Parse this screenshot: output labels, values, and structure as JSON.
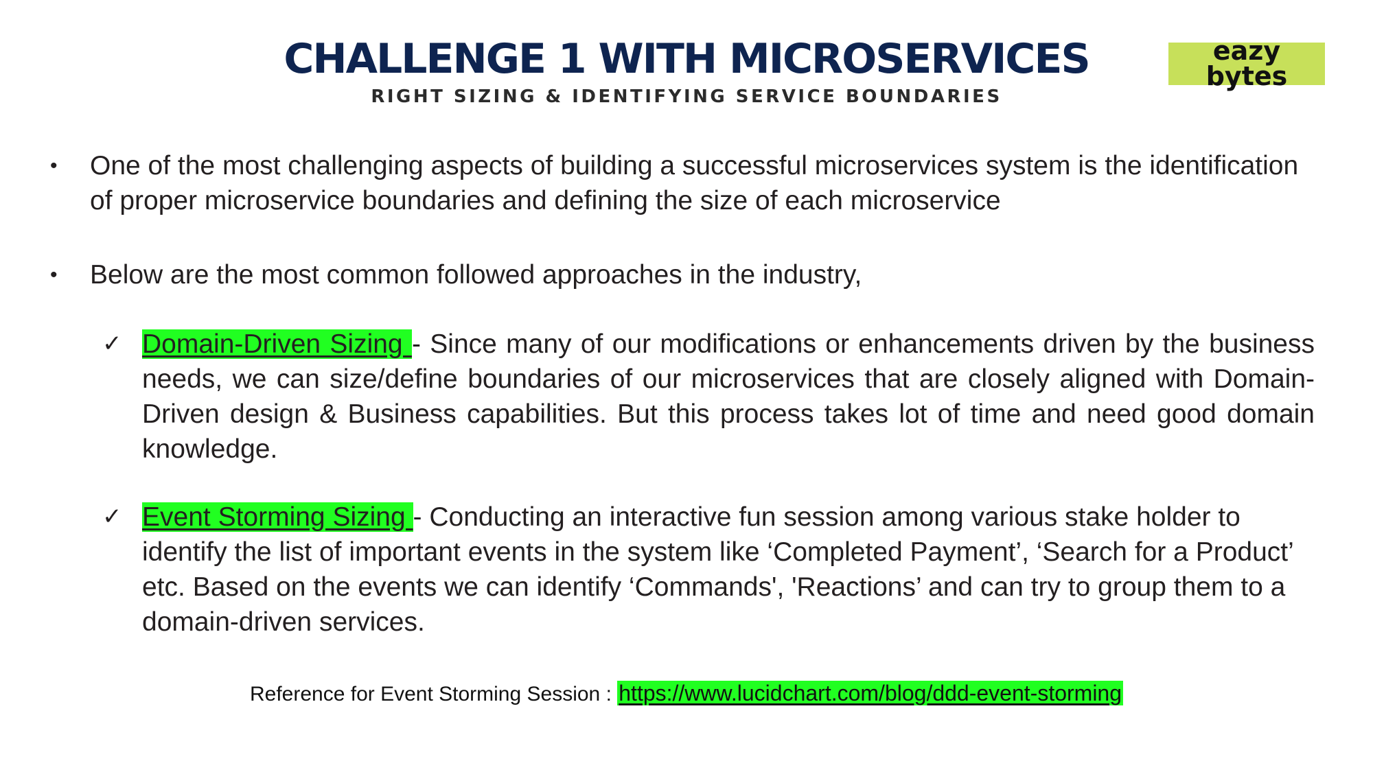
{
  "header": {
    "title": "CHALLENGE 1 WITH MICROSERVICES",
    "subtitle": "RIGHT SIZING & IDENTIFYING SERVICE BOUNDARIES"
  },
  "logo": {
    "line1": "eazy",
    "line2": "bytes",
    "color": "#c7e05a"
  },
  "bullets": [
    "One of the most challenging aspects of building a successful microservices system is the identification of proper microservice boundaries and defining the size of each microservice",
    "Below are the most common followed approaches in the industry,"
  ],
  "approaches": [
    {
      "name": "Domain-Driven Sizing ",
      "description": "- Since many of our modifications or enhancements driven by the business needs, we can size/define boundaries of our microservices that are closely aligned with Domain-Driven design & Business capabilities. But this process takes lot of time and need good domain knowledge."
    },
    {
      "name": "Event Storming Sizing ",
      "description": "- Conducting an interactive fun session among various stake holder to identify the list of important events in the system like ‘Completed Payment’, ‘Search for a Product’ etc. Based on the events we can identify ‘Commands', 'Reactions’ and can try to group them to a domain-driven services."
    }
  ],
  "reference": {
    "label": "Reference for Event Storming Session :",
    "link": "https://www.lucidchart.com/blog/ddd-event-storming",
    "highlight_color": "#21ff21"
  }
}
